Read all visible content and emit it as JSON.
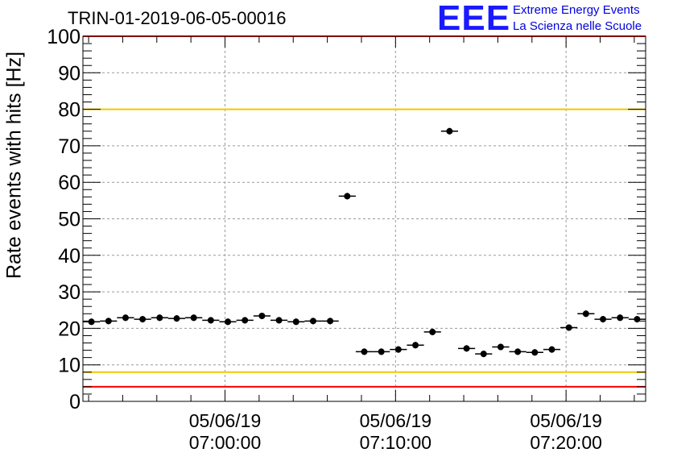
{
  "header": {
    "title": "TRIN-01-2019-06-05-00016",
    "logo_text": "EEE",
    "logo_line1": "Extreme Energy Events",
    "logo_line2": "La Scienza nelle Scuole"
  },
  "chart_data": {
    "type": "scatter",
    "title": "TRIN-01-2019-06-05-00016",
    "xlabel": "",
    "ylabel": "Rate events with hits [Hz]",
    "xlim": [
      "05/06/19 06:51:40",
      "05/06/19 07:24:40"
    ],
    "ylim": [
      0,
      100
    ],
    "yticks": [
      0,
      10,
      20,
      30,
      40,
      50,
      60,
      70,
      80,
      90,
      100
    ],
    "xticks": [
      {
        "date": "05/06/19",
        "time": "07:00:00"
      },
      {
        "date": "05/06/19",
        "time": "07:10:00"
      },
      {
        "date": "05/06/19",
        "time": "07:20:00"
      }
    ],
    "grid": true,
    "points": {
      "x": [
        "06:52:10",
        "06:53:10",
        "06:54:10",
        "06:55:10",
        "06:56:10",
        "06:57:10",
        "06:58:10",
        "06:59:10",
        "07:00:10",
        "07:01:10",
        "07:02:10",
        "07:03:10",
        "07:04:10",
        "07:05:10",
        "07:06:10",
        "07:07:10",
        "07:08:10",
        "07:09:10",
        "07:10:10",
        "07:11:10",
        "07:12:10",
        "07:13:10",
        "07:14:10",
        "07:15:10",
        "07:16:10",
        "07:17:10",
        "07:18:10",
        "07:19:10",
        "07:20:10",
        "07:21:10",
        "07:22:10",
        "07:23:10",
        "07:24:10"
      ],
      "y": [
        21.8,
        22.0,
        22.9,
        22.5,
        22.9,
        22.7,
        22.9,
        22.2,
        21.8,
        22.2,
        23.4,
        22.2,
        21.8,
        22.0,
        22.0,
        56.2,
        13.6,
        13.6,
        14.2,
        15.4,
        19.0,
        74.0,
        14.5,
        13.0,
        14.9,
        13.6,
        13.4,
        14.2,
        20.2,
        24.0,
        22.5,
        22.9,
        22.5
      ]
    },
    "hlines": [
      {
        "y": 4,
        "color": "#ff0000"
      },
      {
        "y": 8,
        "color": "#f2c800"
      },
      {
        "y": 80,
        "color": "#f2c800"
      },
      {
        "y": 100,
        "color": "#ff0000"
      }
    ],
    "colors": {
      "marker": "#000000",
      "grid": "#9a9a9a"
    }
  }
}
